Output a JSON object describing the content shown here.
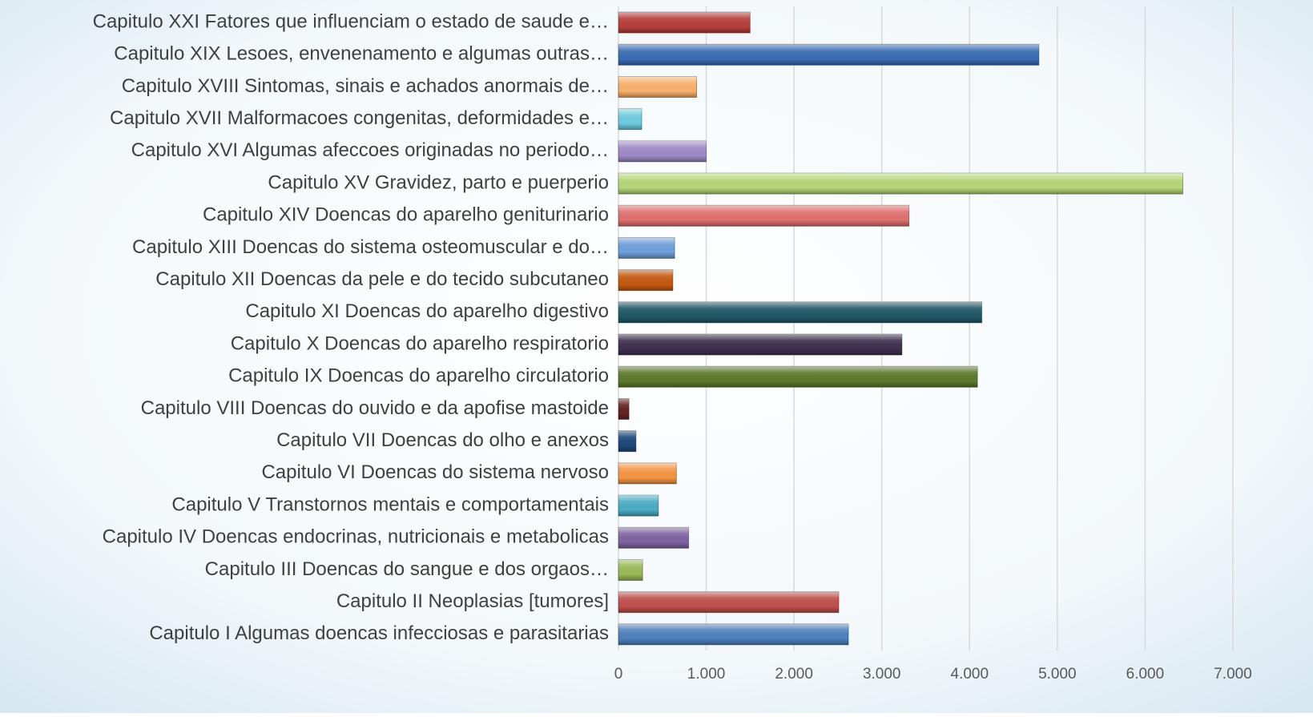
{
  "chart_data": {
    "type": "bar",
    "orientation": "horizontal",
    "categories": [
      "Capitulo I Algumas doencas infecciosas e parasitarias",
      "Capitulo II Neoplasias [tumores]",
      "Capitulo III Doencas do sangue e dos orgaos…",
      "Capitulo IV Doencas endocrinas, nutricionais e metabolicas",
      "Capitulo V Transtornos mentais e comportamentais",
      "Capitulo VI Doencas do sistema nervoso",
      "Capitulo VII Doencas do olho e anexos",
      "Capitulo VIII Doencas do ouvido e da apofise mastoide",
      "Capitulo IX Doencas do aparelho circulatorio",
      "Capitulo X Doencas do aparelho respiratorio",
      "Capitulo XI Doencas do aparelho digestivo",
      "Capitulo XII Doencas da pele e do tecido subcutaneo",
      "Capitulo XIII Doencas do sistema osteomuscular e do…",
      "Capitulo XIV Doencas do aparelho geniturinario",
      "Capitulo XV Gravidez, parto e puerperio",
      "Capitulo XVI Algumas afeccoes originadas no periodo…",
      "Capitulo XVII Malformacoes congenitas, deformidades e…",
      "Capitulo XVIII Sintomas, sinais e achados anormais de…",
      "Capitulo XIX Lesoes, envenenamento e algumas outras…",
      "Capitulo XXI Fatores que influenciam o estado de saude e…"
    ],
    "values": [
      2620,
      2510,
      275,
      800,
      455,
      660,
      200,
      120,
      4090,
      3230,
      4140,
      620,
      640,
      3310,
      6430,
      1000,
      265,
      890,
      4790,
      1500
    ],
    "colors": [
      "#4f81bd",
      "#c0504d",
      "#9bbb59",
      "#8064a2",
      "#4bacc6",
      "#f79646",
      "#1f497d",
      "#632523",
      "#5e7a2e",
      "#403151",
      "#215967",
      "#c55a11",
      "#6fa0dc",
      "#e07070",
      "#b6d77a",
      "#a08bc8",
      "#70cbe0",
      "#f9b06c",
      "#3b6db5",
      "#b8403d"
    ],
    "xlim": [
      0,
      7000
    ],
    "xticks": [
      0,
      {
        "value": 1000,
        "label": "1.000"
      },
      {
        "value": 2000,
        "label": "2.000"
      },
      {
        "value": 3000,
        "label": "3.000"
      },
      {
        "value": 4000,
        "label": "4.000"
      },
      {
        "value": 5000,
        "label": "5.000"
      },
      {
        "value": 6000,
        "label": "6.000"
      },
      {
        "value": 7000,
        "label": "7.000"
      }
    ],
    "grid": true
  }
}
